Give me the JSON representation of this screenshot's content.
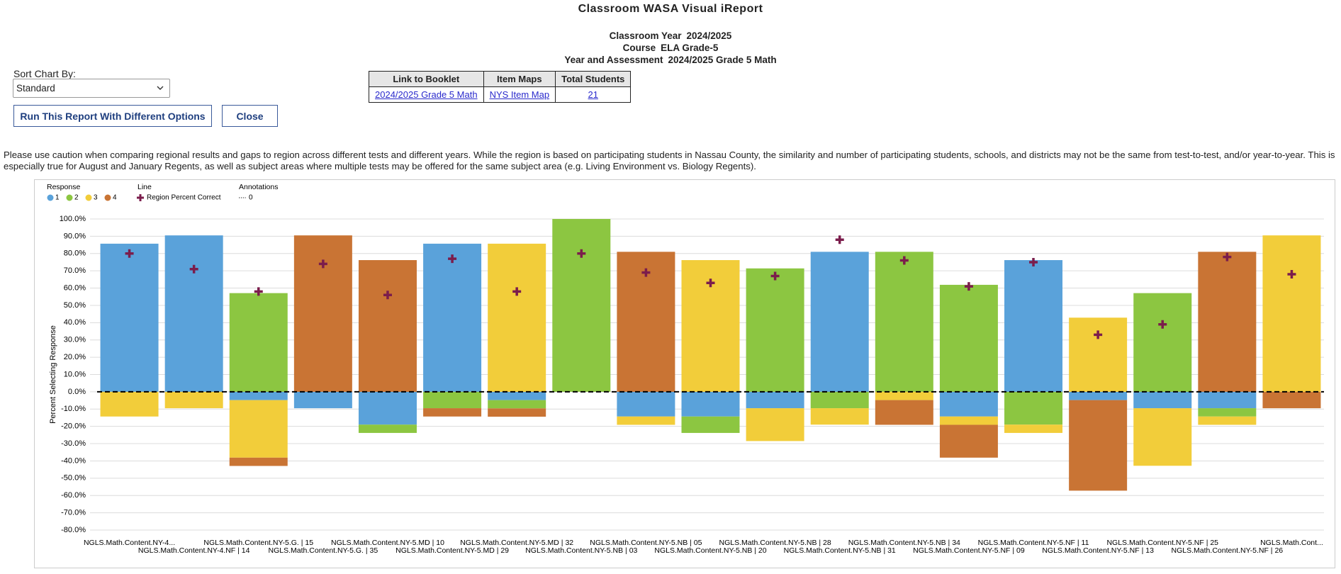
{
  "header": {
    "title": "Classroom WASA Visual iReport",
    "info": [
      {
        "label": "Classroom Year",
        "value": "2024/2025"
      },
      {
        "label": "Course",
        "value": "ELA Grade-5"
      },
      {
        "label": "Year and Assessment",
        "value": "2024/2025 Grade 5 Math"
      }
    ]
  },
  "controls": {
    "sort_label": "Sort Chart By:",
    "sort_value": "Standard",
    "run_button": "Run This Report With Different Options",
    "close_button": "Close"
  },
  "table": {
    "headers": [
      "Link to Booklet",
      "Item Maps",
      "Total Students"
    ],
    "rows": [
      [
        "2024/2025 Grade 5 Math",
        "NYS Item Map",
        "21"
      ]
    ]
  },
  "caution": "Please use caution when comparing regional results and gaps to region across different tests and different years.  While the region is based on participating students in Nassau County, the similarity and number of participating students, schools, and districts may not be the same from test-to-test, and/or year-to-year.  This is especially true for August and January Regents, as well as subject areas where multiple tests may be offered for the same subject area (e.g. Living Environment vs. Biology Regents).",
  "chart_data": {
    "type": "bar",
    "y_label": "Percent Selecting Response",
    "legend_titles": {
      "series": "Response",
      "line": "Line",
      "annotations": "Annotations"
    },
    "categories": [
      "NGLS.Math.Content.NY-4...",
      "NGLS.Math.Content.NY-4.NF | 14",
      "NGLS.Math.Content.NY-5.G. | 15",
      "NGLS.Math.Content.NY-5.G. | 35",
      "NGLS.Math.Content.NY-5.MD | 10",
      "NGLS.Math.Content.NY-5.MD | 29",
      "NGLS.Math.Content.NY-5.MD | 32",
      "NGLS.Math.Content.NY-5.NB | 03",
      "NGLS.Math.Content.NY-5.NB | 05",
      "NGLS.Math.Content.NY-5.NB | 20",
      "NGLS.Math.Content.NY-5.NB | 28",
      "NGLS.Math.Content.NY-5.NB | 31",
      "NGLS.Math.Content.NY-5.NB | 34",
      "NGLS.Math.Content.NY-5.NF | 09",
      "NGLS.Math.Content.NY-5.NF | 11",
      "NGLS.Math.Content.NY-5.NF | 13",
      "NGLS.Math.Content.NY-5.NF | 25",
      "NGLS.Math.Content.NY-5.NF | 26",
      "NGLS.Math.Cont..."
    ],
    "series": [
      {
        "name": "1",
        "color": "#5aa2da",
        "values": [
          85.7,
          90.5,
          -4.8,
          -9.5,
          -19.0,
          85.7,
          -4.8,
          null,
          -14.3,
          -14.3,
          -9.5,
          81.0,
          null,
          -14.3,
          76.2,
          -4.8,
          -9.5,
          -9.5,
          null
        ]
      },
      {
        "name": "2",
        "color": "#8cc641",
        "values": [
          null,
          null,
          57.1,
          null,
          -4.8,
          -9.5,
          -4.8,
          100,
          null,
          -9.5,
          71.4,
          -9.5,
          81.0,
          61.9,
          -19.0,
          null,
          57.1,
          -4.8,
          null
        ]
      },
      {
        "name": "3",
        "color": "#f2cd3a",
        "values": [
          -14.3,
          -9.5,
          -33.3,
          null,
          null,
          null,
          85.7,
          null,
          -4.8,
          76.2,
          -19.0,
          -9.5,
          -4.8,
          -4.8,
          -4.8,
          42.9,
          -33.3,
          -4.8,
          90.5
        ]
      },
      {
        "name": "4",
        "color": "#c97434",
        "values": [
          null,
          null,
          -4.8,
          90.5,
          76.2,
          -4.8,
          -4.8,
          null,
          81.0,
          null,
          null,
          null,
          -14.3,
          -19.0,
          null,
          -52.4,
          null,
          81.0,
          -9.5
        ]
      }
    ],
    "line": {
      "name": "Region Percent Correct",
      "color": "#7b1d4c",
      "values": [
        80,
        71,
        58,
        74,
        56,
        77,
        58,
        80,
        69,
        63,
        67,
        88,
        76,
        61,
        75,
        33,
        39,
        78,
        68
      ]
    },
    "reference_line": {
      "name": "0",
      "value": 0
    },
    "ylim": [
      -80,
      100
    ],
    "yticks": [
      {
        "value": -80,
        "label": "-80.0%"
      },
      {
        "value": -70,
        "label": "-70.0%"
      },
      {
        "value": -60,
        "label": "-60.0%"
      },
      {
        "value": -50,
        "label": "-50.0%"
      },
      {
        "value": -40,
        "label": "-40.0%"
      },
      {
        "value": -30,
        "label": "-30.0%"
      },
      {
        "value": -20,
        "label": "-20.0%"
      },
      {
        "value": -10,
        "label": "-10.0%"
      },
      {
        "value": 0,
        "label": "0.0%"
      },
      {
        "value": 10,
        "label": "10.0%"
      },
      {
        "value": 20,
        "label": "20.0%"
      },
      {
        "value": 30,
        "label": "30.0%"
      },
      {
        "value": 40,
        "label": "40.0%"
      },
      {
        "value": 50,
        "label": "50.0%"
      },
      {
        "value": 60,
        "label": "60.0%"
      },
      {
        "value": 70,
        "label": "70.0%"
      },
      {
        "value": 80,
        "label": "80.0%"
      },
      {
        "value": 90,
        "label": "90.0%"
      },
      {
        "value": 100,
        "label": "100.0%"
      }
    ],
    "grid": true
  }
}
